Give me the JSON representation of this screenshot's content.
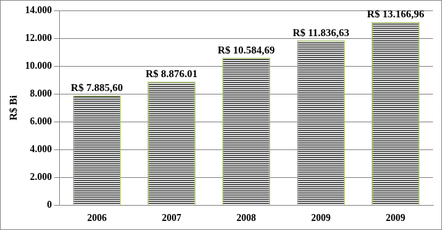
{
  "chart_data": {
    "type": "bar",
    "y_label": "R$ Bi",
    "categories": [
      "2006",
      "2007",
      "2008",
      "2009",
      "2009"
    ],
    "values": [
      7885.6,
      8876.01,
      10584.69,
      11836.63,
      13166.96
    ],
    "value_labels": [
      "R$ 7.885,60",
      "R$ 8.876.01",
      "R$ 10.584,69",
      "R$ 11.836,63",
      "R$ 13.166,96"
    ],
    "data_labels": true,
    "color": "#222222",
    "ylim": [
      0,
      14000
    ],
    "yticks": [
      0,
      {
        "value": 2000,
        "label": "2.000"
      },
      {
        "value": 4000,
        "label": "4.000"
      },
      {
        "value": 6000,
        "label": "6.000"
      },
      {
        "value": 8000,
        "label": "8.000"
      },
      {
        "value": 10000,
        "label": "10.000"
      },
      {
        "value": 12000,
        "label": "12.000"
      },
      {
        "value": 14000,
        "label": "14.000"
      }
    ],
    "grid": true
  }
}
